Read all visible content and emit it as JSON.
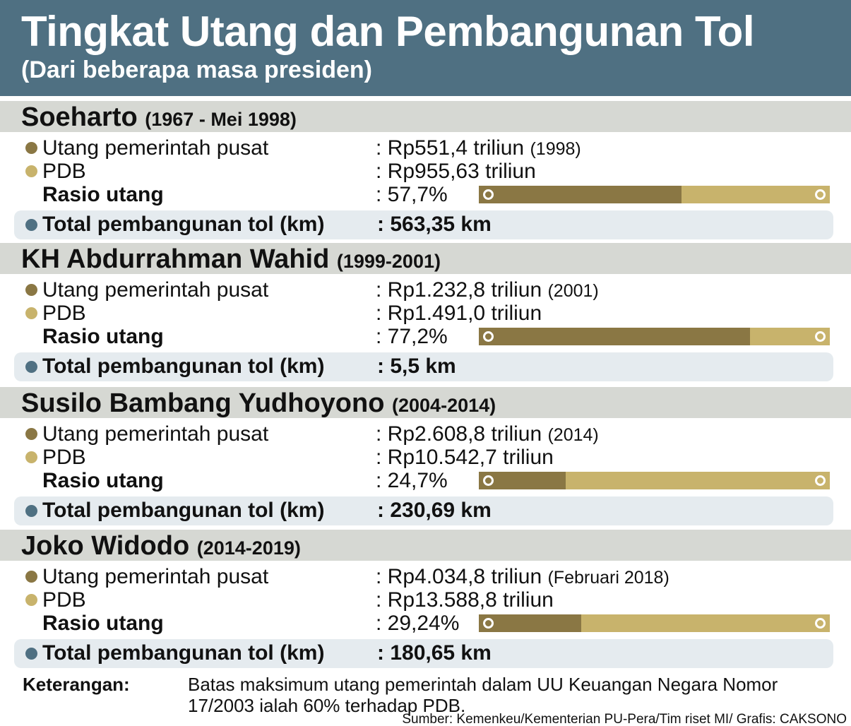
{
  "title": "Tingkat Utang dan Pembangunan Tol",
  "subtitle": "(Dari beberapa masa presiden)",
  "labels": {
    "debt": "Utang pemerintah pusat",
    "gdp": "PDB",
    "ratio": "Rasio utang",
    "toll": "Total pembangunan tol (km)"
  },
  "colors": {
    "header": "#4f7082",
    "debt": "#8a7744",
    "gdp": "#c8b36c",
    "band": "#d6d8d3",
    "toll_box": "#e5ebef"
  },
  "chart_data": {
    "type": "bar",
    "xlim": [
      0,
      100
    ],
    "presidents": [
      {
        "name": "Soeharto",
        "period": "(1967 - Mei 1998)",
        "debt": ": Rp551,4 triliun",
        "debt_year": "(1998)",
        "gdp": ": Rp955,63 triliun",
        "ratio_text": ": 57,7%",
        "ratio": 57.7,
        "toll": ": 563,35 km"
      },
      {
        "name": "KH Abdurrahman Wahid",
        "period": "(1999-2001)",
        "debt": ": Rp1.232,8 triliun",
        "debt_year": "(2001)",
        "gdp": ": Rp1.491,0 triliun",
        "ratio_text": ": 77,2%",
        "ratio": 77.2,
        "toll": ": 5,5 km"
      },
      {
        "name": "Susilo Bambang Yudhoyono",
        "period": "(2004-2014)",
        "debt": ": Rp2.608,8 triliun",
        "debt_year": "(2014)",
        "gdp": ": Rp10.542,7 triliun",
        "ratio_text": ": 24,7%",
        "ratio": 24.7,
        "toll": ": 230,69 km"
      },
      {
        "name": "Joko Widodo",
        "period": "(2014-2019)",
        "debt": ": Rp4.034,8 triliun",
        "debt_year": "(Februari 2018)",
        "gdp": ": Rp13.588,8 triliun",
        "ratio_text": ": 29,24%",
        "ratio": 29.24,
        "toll": ": 180,65 km"
      }
    ]
  },
  "note": {
    "label": "Keterangan:",
    "text": "Batas maksimum utang pemerintah dalam UU Keuangan Negara Nomor 17/2003 ialah 60% terhadap PDB.",
    "source": "Sumber: Kemenkeu/Kementerian PU-Pera/Tim riset MI/ Grafis: CAKSONO"
  }
}
